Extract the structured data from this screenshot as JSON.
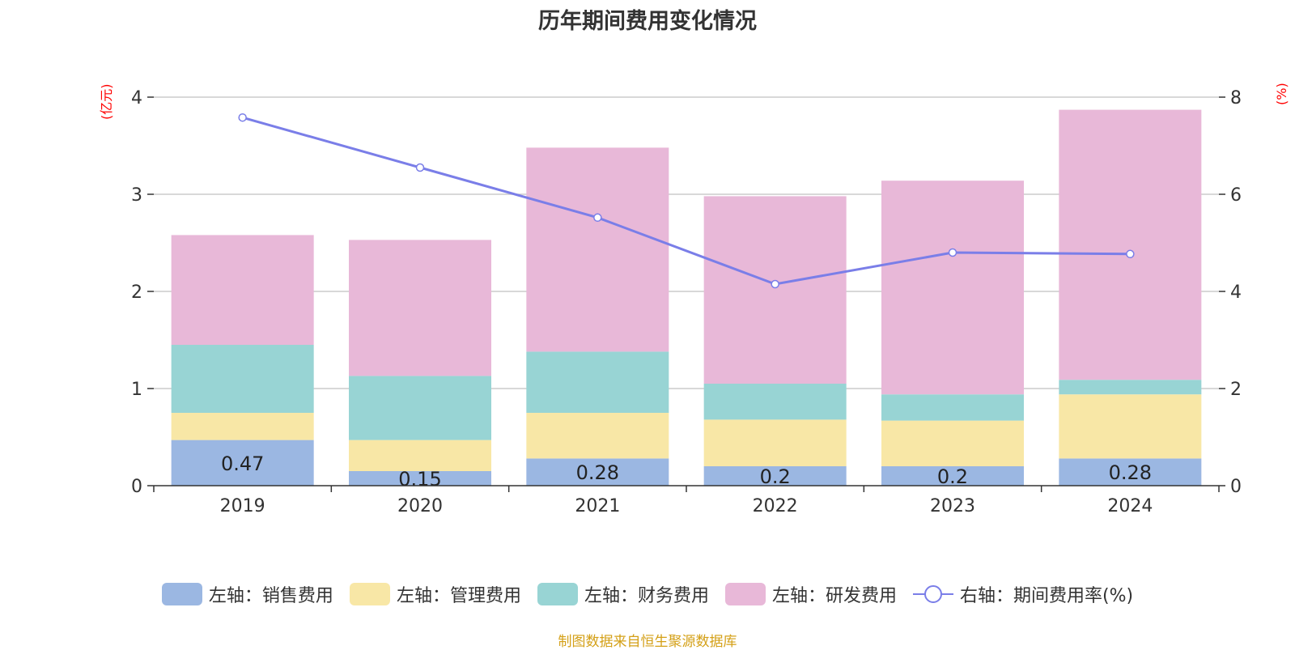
{
  "chart_data": {
    "type": "bar",
    "title": "历年期间费用变化情况",
    "categories": [
      "2019",
      "2020",
      "2021",
      "2022",
      "2023",
      "2024"
    ],
    "left_axis": {
      "unit": "(亿元)",
      "ylim": [
        0,
        4
      ],
      "ticks": [
        0,
        1,
        2,
        3,
        4
      ]
    },
    "right_axis": {
      "unit": "(%)",
      "ylim": [
        0,
        8
      ],
      "ticks": [
        0,
        2,
        4,
        6,
        8
      ]
    },
    "series": [
      {
        "name": "左轴：销售费用",
        "type": "bar",
        "stack": true,
        "color": "#9bb7e2",
        "values": [
          0.47,
          0.15,
          0.28,
          0.2,
          0.2,
          0.28
        ],
        "show_labels": true
      },
      {
        "name": "左轴：管理费用",
        "type": "bar",
        "stack": true,
        "color": "#f8e7a6",
        "values": [
          0.28,
          0.32,
          0.47,
          0.48,
          0.47,
          0.66
        ]
      },
      {
        "name": "左轴：财务费用",
        "type": "bar",
        "stack": true,
        "color": "#98d4d4",
        "values": [
          0.7,
          0.66,
          0.63,
          0.37,
          0.27,
          0.15
        ]
      },
      {
        "name": "左轴：研发费用",
        "type": "bar",
        "stack": true,
        "color": "#e8b8d8",
        "values": [
          1.13,
          1.4,
          2.1,
          1.93,
          2.2,
          2.78
        ]
      },
      {
        "name": "右轴：期间费用率(%)",
        "type": "line",
        "axis": "right",
        "color": "#7a7ee8",
        "values": [
          7.58,
          6.55,
          5.52,
          4.15,
          4.8,
          4.77
        ]
      }
    ],
    "grid": true,
    "legend_position": "bottom"
  },
  "footer": {
    "source": "制图数据来自恒生聚源数据库"
  }
}
